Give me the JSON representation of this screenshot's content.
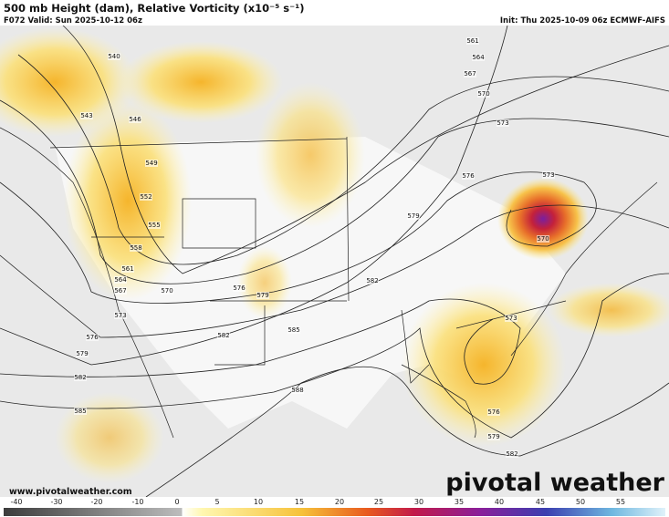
{
  "header": {
    "title": "500 mb Height (dam), Relative Vorticity (x10⁻⁵ s⁻¹)",
    "valid": "F072 Valid: Sun 2025-10-12 06z",
    "init": "Init: Thu 2025-10-09 06z ECMWF-AIFS"
  },
  "contour_labels": [
    540,
    543,
    546,
    549,
    552,
    555,
    558,
    561,
    564,
    567,
    570,
    573,
    576,
    579,
    582,
    585,
    576,
    579,
    582,
    585,
    588,
    582,
    579,
    576,
    561,
    564,
    567,
    570,
    573,
    573,
    570,
    573,
    576,
    579,
    582
  ],
  "colorbar": {
    "ticks": [
      -40,
      -30,
      -20,
      -10,
      0,
      5,
      10,
      15,
      20,
      25,
      30,
      35,
      40,
      45,
      50,
      55
    ]
  },
  "footer": {
    "url": "www.pivotalweather.com",
    "logo": "pivotal weather"
  }
}
